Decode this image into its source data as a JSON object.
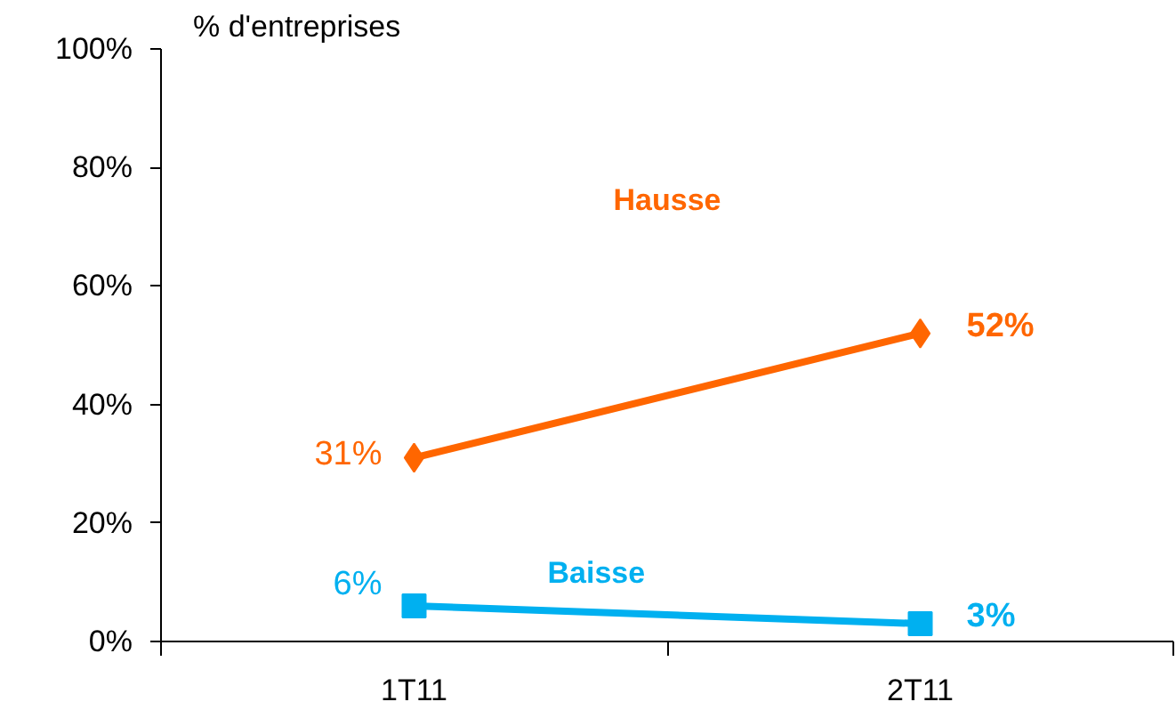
{
  "chart_data": {
    "type": "line",
    "ylabel": "% d'entreprises",
    "categories": [
      "1T11",
      "2T11"
    ],
    "series": [
      {
        "name": "Hausse",
        "color": "#ff6600",
        "values": [
          31,
          52
        ],
        "marker": "diamond",
        "value_labels": [
          "31%",
          "52%"
        ]
      },
      {
        "name": "Baisse",
        "color": "#00b0f0",
        "values": [
          6,
          3
        ],
        "marker": "square",
        "value_labels": [
          "6%",
          "3%"
        ]
      }
    ],
    "ylim": [
      0,
      100
    ],
    "yticks": [
      {
        "value": 0,
        "label": "0%"
      },
      {
        "value": 20,
        "label": "20%"
      },
      {
        "value": 40,
        "label": "40%"
      },
      {
        "value": 60,
        "label": "60%"
      },
      {
        "value": 80,
        "label": "80%"
      },
      {
        "value": 100,
        "label": "100%"
      }
    ],
    "grid": false,
    "line_style": "solid"
  }
}
